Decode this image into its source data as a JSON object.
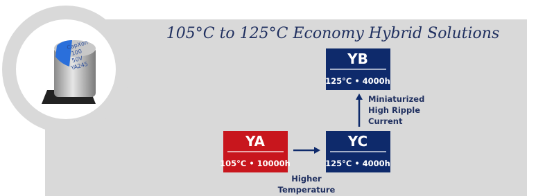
{
  "title": "105°C to 125°C Economy Hybrid Solutions",
  "capacitor": {
    "markings": [
      "CapXon",
      "100",
      "50V",
      "YA245"
    ]
  },
  "nodes": [
    {
      "label": "YB",
      "spec": "125°C • 4000h"
    },
    {
      "label": "YA",
      "spec": "105°C • 10000h"
    },
    {
      "label": "YC",
      "spec": "125°C • 4000h"
    }
  ],
  "edges": [
    {
      "label": [
        "Higher",
        "Temperature"
      ]
    },
    {
      "label": [
        "Miniaturized",
        "High Ripple",
        "Current"
      ]
    }
  ]
}
